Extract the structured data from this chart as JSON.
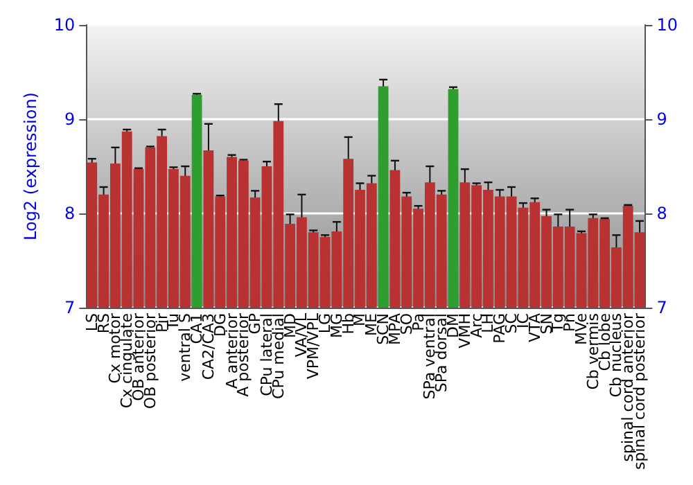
{
  "chart_data": {
    "type": "bar",
    "ylabel": "Log2 (expression)",
    "categories": [
      "LS",
      "RS",
      "Cx motor",
      "Cx cingulate",
      "OB anterior",
      "OB posterior",
      "Pir",
      "Tu",
      "ventral S",
      "CA1",
      "CA2/CA3",
      "DG",
      "A anterior",
      "A posterior",
      "GP",
      "CPu lateral",
      "CPu medial",
      "MD",
      "VA/VL",
      "VPM/VPL",
      "LG",
      "MG",
      "Hb",
      "M",
      "ME",
      "SCN",
      "MPA",
      "SO",
      "Pa",
      "SPa ventral",
      "SPa dorsal",
      "DM",
      "VMH",
      "Arc",
      "LH",
      "PAG",
      "SC",
      "IC",
      "VTA",
      "SN",
      "Tg",
      "Pn",
      "MVe",
      "Cb vermis",
      "Cb lobe",
      "Cb nucleus",
      "spinal cord anterior",
      "spinal cord posterior"
    ],
    "values": [
      8.54,
      8.2,
      8.53,
      8.87,
      8.47,
      8.7,
      8.82,
      8.47,
      8.4,
      9.26,
      8.67,
      8.18,
      8.6,
      8.56,
      8.17,
      8.5,
      8.98,
      7.89,
      7.96,
      7.8,
      7.75,
      7.81,
      8.58,
      8.25,
      8.32,
      9.35,
      8.46,
      8.18,
      8.05,
      8.33,
      8.2,
      9.32,
      8.33,
      8.3,
      8.25,
      8.18,
      8.18,
      8.06,
      8.12,
      7.97,
      7.86,
      7.86,
      7.79,
      7.95,
      7.94,
      7.64,
      8.08,
      7.8
    ],
    "errors": [
      0.04,
      0.08,
      0.17,
      0.02,
      0.01,
      0.01,
      0.07,
      0.02,
      0.1,
      0.01,
      0.28,
      0.01,
      0.02,
      0.01,
      0.07,
      0.05,
      0.18,
      0.1,
      0.24,
      0.02,
      0.02,
      0.1,
      0.23,
      0.07,
      0.08,
      0.07,
      0.1,
      0.04,
      0.03,
      0.17,
      0.04,
      0.02,
      0.14,
      0.02,
      0.08,
      0.07,
      0.1,
      0.05,
      0.04,
      0.07,
      0.13,
      0.18,
      0.02,
      0.04,
      0.01,
      0.13,
      0.01,
      0.12
    ],
    "colors": [
      "#b83232",
      "#b83232",
      "#b83232",
      "#b83232",
      "#b83232",
      "#b83232",
      "#b83232",
      "#b83232",
      "#b83232",
      "#2e9e2e",
      "#b83232",
      "#b83232",
      "#b83232",
      "#b83232",
      "#b83232",
      "#b83232",
      "#b83232",
      "#b83232",
      "#b83232",
      "#b83232",
      "#b83232",
      "#b83232",
      "#b83232",
      "#b83232",
      "#b83232",
      "#2e9e2e",
      "#b83232",
      "#b83232",
      "#b83232",
      "#b83232",
      "#b83232",
      "#2e9e2e",
      "#b83232",
      "#b83232",
      "#b83232",
      "#b83232",
      "#b83232",
      "#b83232",
      "#b83232",
      "#b83232",
      "#b83232",
      "#b83232",
      "#b83232",
      "#b83232",
      "#b83232",
      "#b83232",
      "#b83232",
      "#b83232"
    ],
    "ylim": [
      7,
      10
    ],
    "yticks": [
      7,
      8,
      9,
      10
    ],
    "y2lim": [
      7,
      10
    ],
    "y2ticks": [
      7,
      8,
      9,
      10
    ],
    "grid": "y"
  }
}
